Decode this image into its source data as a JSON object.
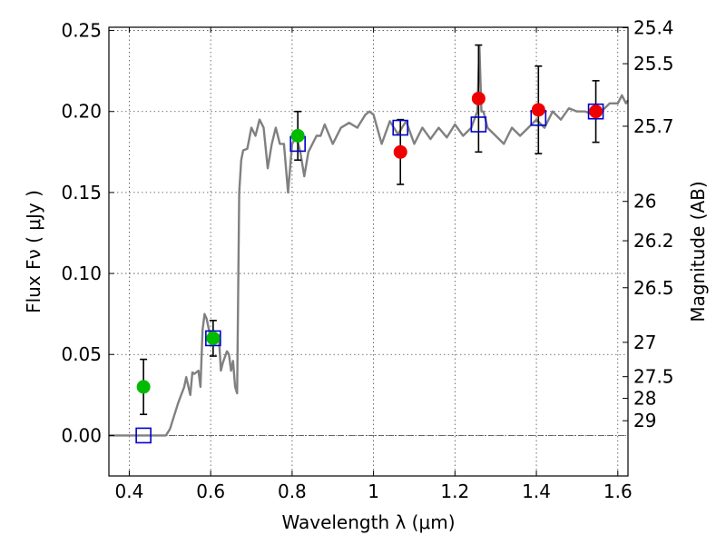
{
  "chart_data": {
    "type": "scatter",
    "xlabel": "Wavelength  λ (μm)",
    "ylabel": "Flux  Fν  ( μJy )",
    "y2label": "Magnitude (AB)",
    "xlim": [
      0.35,
      1.625
    ],
    "ylim": [
      -0.025,
      0.252
    ],
    "grid": true,
    "x_ticks": [
      {
        "value": 0.4,
        "label": "0.4"
      },
      {
        "value": 0.6,
        "label": "0.6"
      },
      {
        "value": 0.8,
        "label": "0.8"
      },
      {
        "value": 1.0,
        "label": "1"
      },
      {
        "value": 1.2,
        "label": "1.2"
      },
      {
        "value": 1.4,
        "label": "1.4"
      },
      {
        "value": 1.6,
        "label": "1.6"
      }
    ],
    "y_ticks": [
      {
        "value": 0.0,
        "label": "0.00"
      },
      {
        "value": 0.05,
        "label": "0.05"
      },
      {
        "value": 0.1,
        "label": "0.10"
      },
      {
        "value": 0.15,
        "label": "0.15"
      },
      {
        "value": 0.2,
        "label": "0.20"
      },
      {
        "value": 0.25,
        "label": "0.25"
      }
    ],
    "mag_ticks": [
      {
        "flux": 0.2517,
        "label": "25.4"
      },
      {
        "flux": 0.2295,
        "label": "25.5"
      },
      {
        "flux": 0.1909,
        "label": "25.7"
      },
      {
        "flux": 0.1445,
        "label": "26"
      },
      {
        "flux": 0.1202,
        "label": "26.2"
      },
      {
        "flux": 0.0912,
        "label": "26.5"
      },
      {
        "flux": 0.0575,
        "label": "27"
      },
      {
        "flux": 0.0363,
        "label": "27.5"
      },
      {
        "flux": 0.0229,
        "label": "28"
      },
      {
        "flux": 0.0091,
        "label": "29"
      }
    ],
    "zero_line": 0.0,
    "colors": {
      "model": "#808080",
      "model_photometry": "#0000cc",
      "series_green": "#00bb00",
      "series_red": "#ee0000",
      "errorbar": "#000000",
      "zero_line": "#555555"
    },
    "model_spectrum": {
      "x": [
        0.35,
        0.4,
        0.45,
        0.49,
        0.5,
        0.52,
        0.535,
        0.54,
        0.55,
        0.555,
        0.56,
        0.57,
        0.575,
        0.58,
        0.585,
        0.59,
        0.6,
        0.61,
        0.62,
        0.625,
        0.63,
        0.64,
        0.645,
        0.65,
        0.655,
        0.66,
        0.665,
        0.67,
        0.675,
        0.68,
        0.69,
        0.7,
        0.71,
        0.72,
        0.73,
        0.74,
        0.75,
        0.76,
        0.77,
        0.78,
        0.79,
        0.8,
        0.81,
        0.82,
        0.83,
        0.84,
        0.85,
        0.86,
        0.87,
        0.88,
        0.9,
        0.92,
        0.94,
        0.96,
        0.98,
        0.99,
        1.0,
        1.02,
        1.04,
        1.06,
        1.08,
        1.1,
        1.12,
        1.14,
        1.16,
        1.18,
        1.2,
        1.22,
        1.24,
        1.255,
        1.26,
        1.265,
        1.27,
        1.28,
        1.3,
        1.32,
        1.34,
        1.36,
        1.38,
        1.4,
        1.42,
        1.44,
        1.46,
        1.48,
        1.5,
        1.52,
        1.54,
        1.56,
        1.58,
        1.6,
        1.61,
        1.62,
        1.625
      ],
      "y": [
        0.0,
        0.0,
        0.0,
        0.0,
        0.004,
        0.02,
        0.03,
        0.036,
        0.025,
        0.039,
        0.038,
        0.04,
        0.03,
        0.065,
        0.075,
        0.072,
        0.06,
        0.062,
        0.062,
        0.04,
        0.045,
        0.052,
        0.05,
        0.04,
        0.046,
        0.03,
        0.026,
        0.15,
        0.17,
        0.176,
        0.177,
        0.19,
        0.185,
        0.195,
        0.19,
        0.165,
        0.18,
        0.19,
        0.18,
        0.18,
        0.15,
        0.18,
        0.185,
        0.175,
        0.16,
        0.175,
        0.18,
        0.185,
        0.185,
        0.192,
        0.18,
        0.19,
        0.193,
        0.19,
        0.198,
        0.2,
        0.198,
        0.18,
        0.194,
        0.186,
        0.194,
        0.18,
        0.19,
        0.183,
        0.19,
        0.184,
        0.192,
        0.185,
        0.19,
        0.2,
        0.24,
        0.2,
        0.2,
        0.19,
        0.185,
        0.18,
        0.19,
        0.185,
        0.19,
        0.195,
        0.19,
        0.2,
        0.195,
        0.202,
        0.2,
        0.2,
        0.198,
        0.2,
        0.205,
        0.205,
        0.21,
        0.205,
        0.207
      ]
    },
    "model_photometry": {
      "x": [
        0.435,
        0.606,
        0.814,
        1.066,
        1.258,
        1.405,
        1.546
      ],
      "y": [
        0.0,
        0.06,
        0.18,
        0.19,
        0.192,
        0.196,
        0.2
      ]
    },
    "series_green": {
      "x": [
        0.435,
        0.606,
        0.814
      ],
      "y": [
        0.03,
        0.06,
        0.185
      ],
      "err": [
        0.017,
        0.011,
        0.015
      ]
    },
    "series_red": {
      "x": [
        1.066,
        1.258,
        1.405,
        1.546
      ],
      "y": [
        0.175,
        0.208,
        0.201,
        0.2
      ],
      "err": [
        0.02,
        0.033,
        0.027,
        0.019
      ]
    }
  }
}
